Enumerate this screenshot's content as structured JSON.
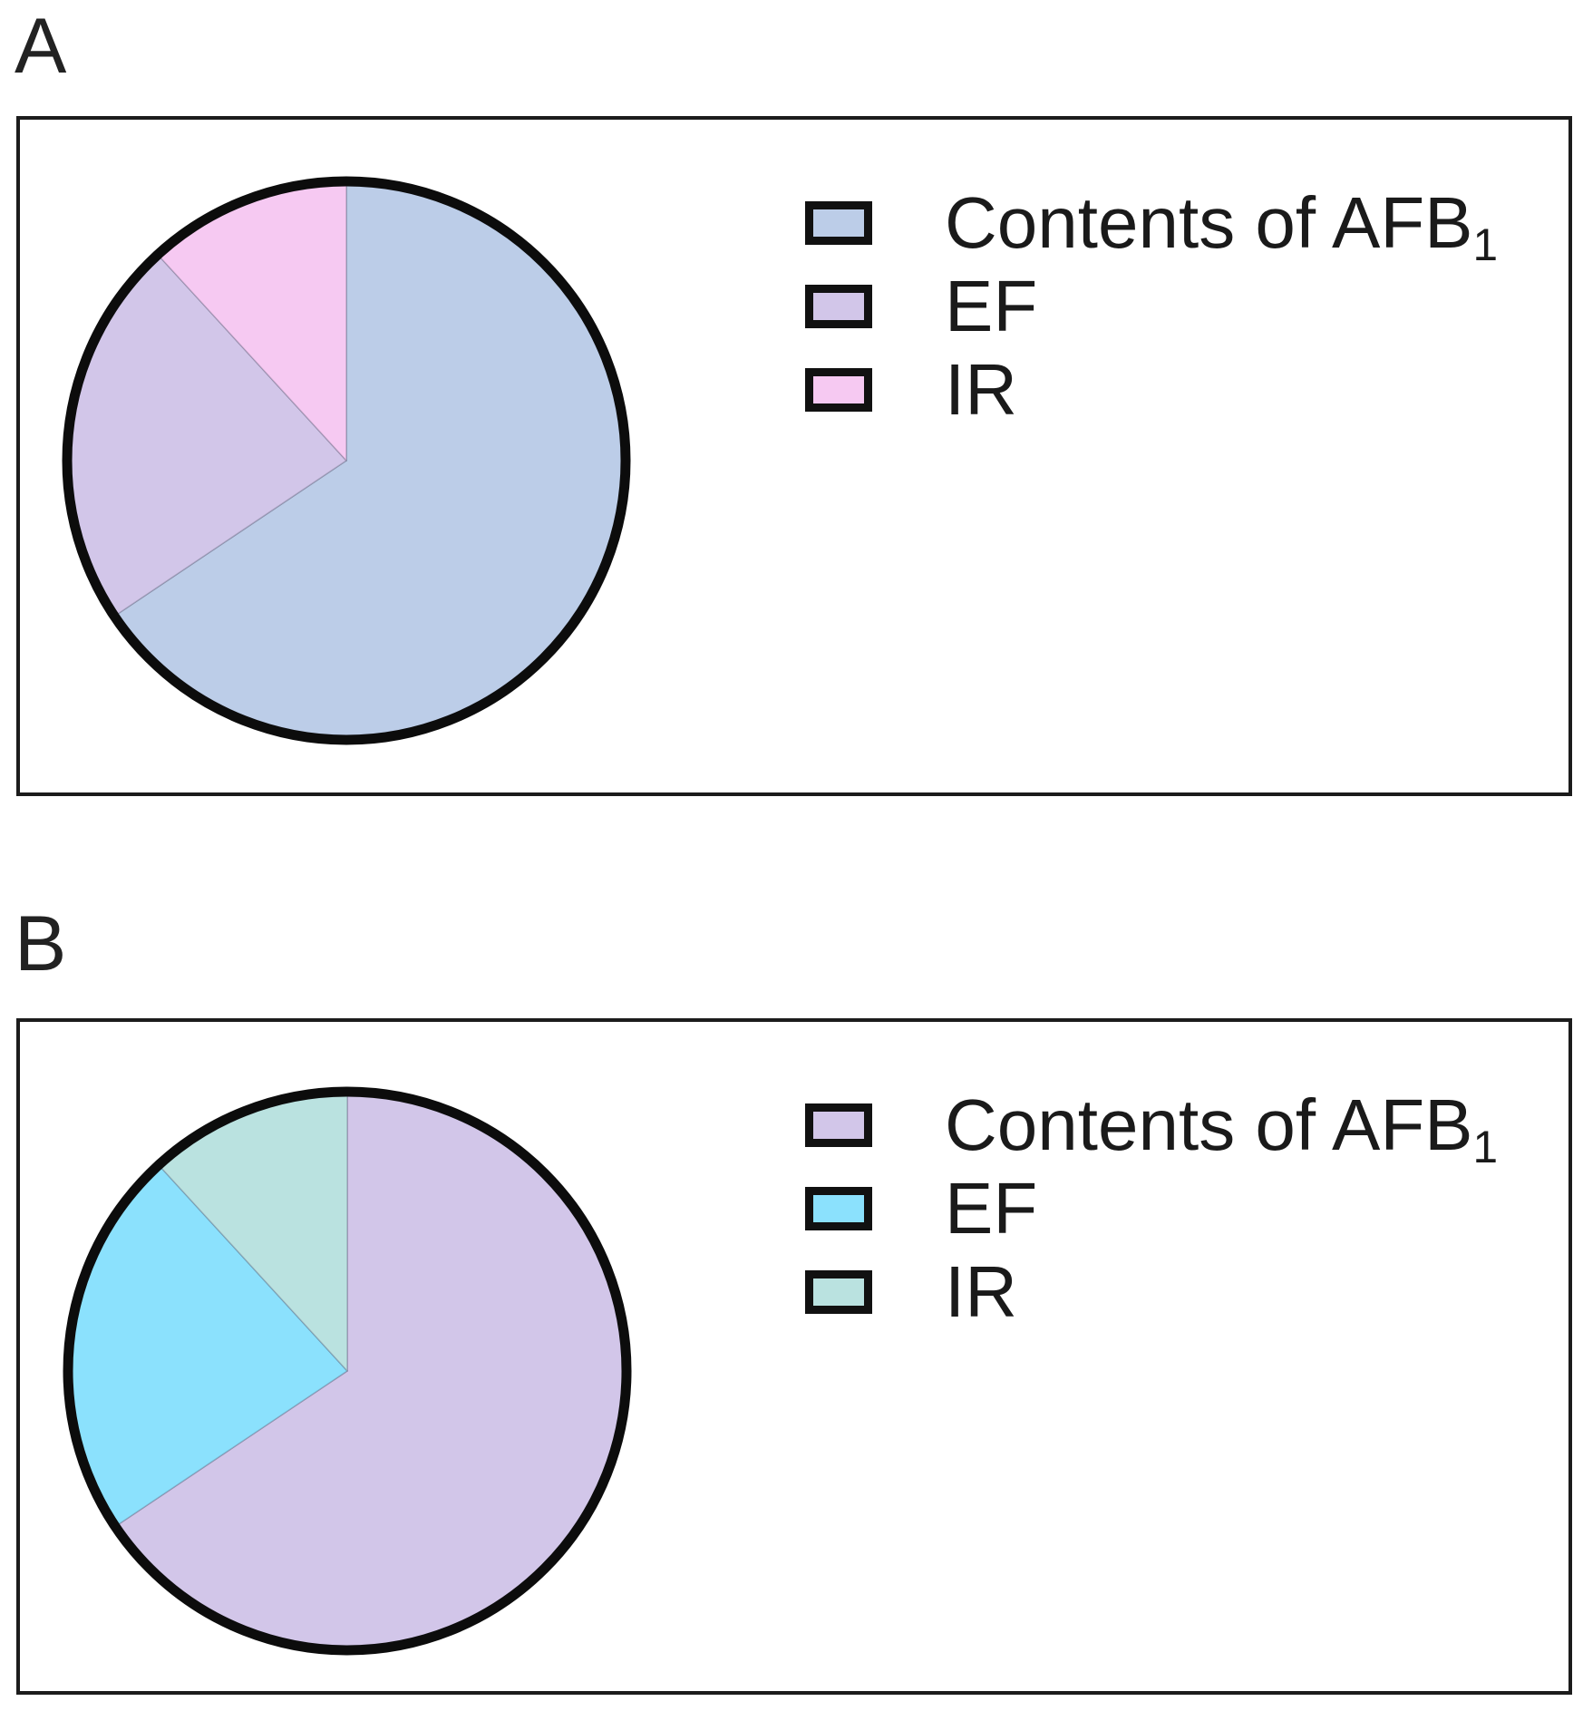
{
  "panels": [
    {
      "label": "A",
      "legend": [
        {
          "label": "Contents of AFB",
          "sub": "1",
          "color": "#bccde8"
        },
        {
          "label": "EF",
          "color": "#d2c6e9"
        },
        {
          "label": "IR",
          "color": "#f6c9f2"
        }
      ]
    },
    {
      "label": "B",
      "legend": [
        {
          "label": "Contents of AFB",
          "sub": "1",
          "color": "#d2c6e9"
        },
        {
          "label": "EF",
          "color": "#8be1fd"
        },
        {
          "label": "IR",
          "color": "#bae2e0"
        }
      ]
    }
  ],
  "chart_data": [
    {
      "type": "pie",
      "panel": "A",
      "start_angle_deg": 0,
      "direction": "clockwise",
      "legend_position": "right",
      "labels_shown": false,
      "outline_color": "#0c0c0c",
      "series": [
        {
          "name": "Contents of AFB1",
          "value_pct": 65.6,
          "color": "#bccde8"
        },
        {
          "name": "EF",
          "value_pct": 22.6,
          "color": "#d2c6e9"
        },
        {
          "name": "IR",
          "value_pct": 11.8,
          "color": "#f6c9f2"
        }
      ]
    },
    {
      "type": "pie",
      "panel": "B",
      "start_angle_deg": 0,
      "direction": "clockwise",
      "legend_position": "right",
      "labels_shown": false,
      "outline_color": "#0c0c0c",
      "series": [
        {
          "name": "Contents of AFB1",
          "value_pct": 65.6,
          "color": "#d2c6e9"
        },
        {
          "name": "EF",
          "value_pct": 22.6,
          "color": "#8be1fd"
        },
        {
          "name": "IR",
          "value_pct": 11.8,
          "color": "#bae2e0"
        }
      ]
    }
  ]
}
